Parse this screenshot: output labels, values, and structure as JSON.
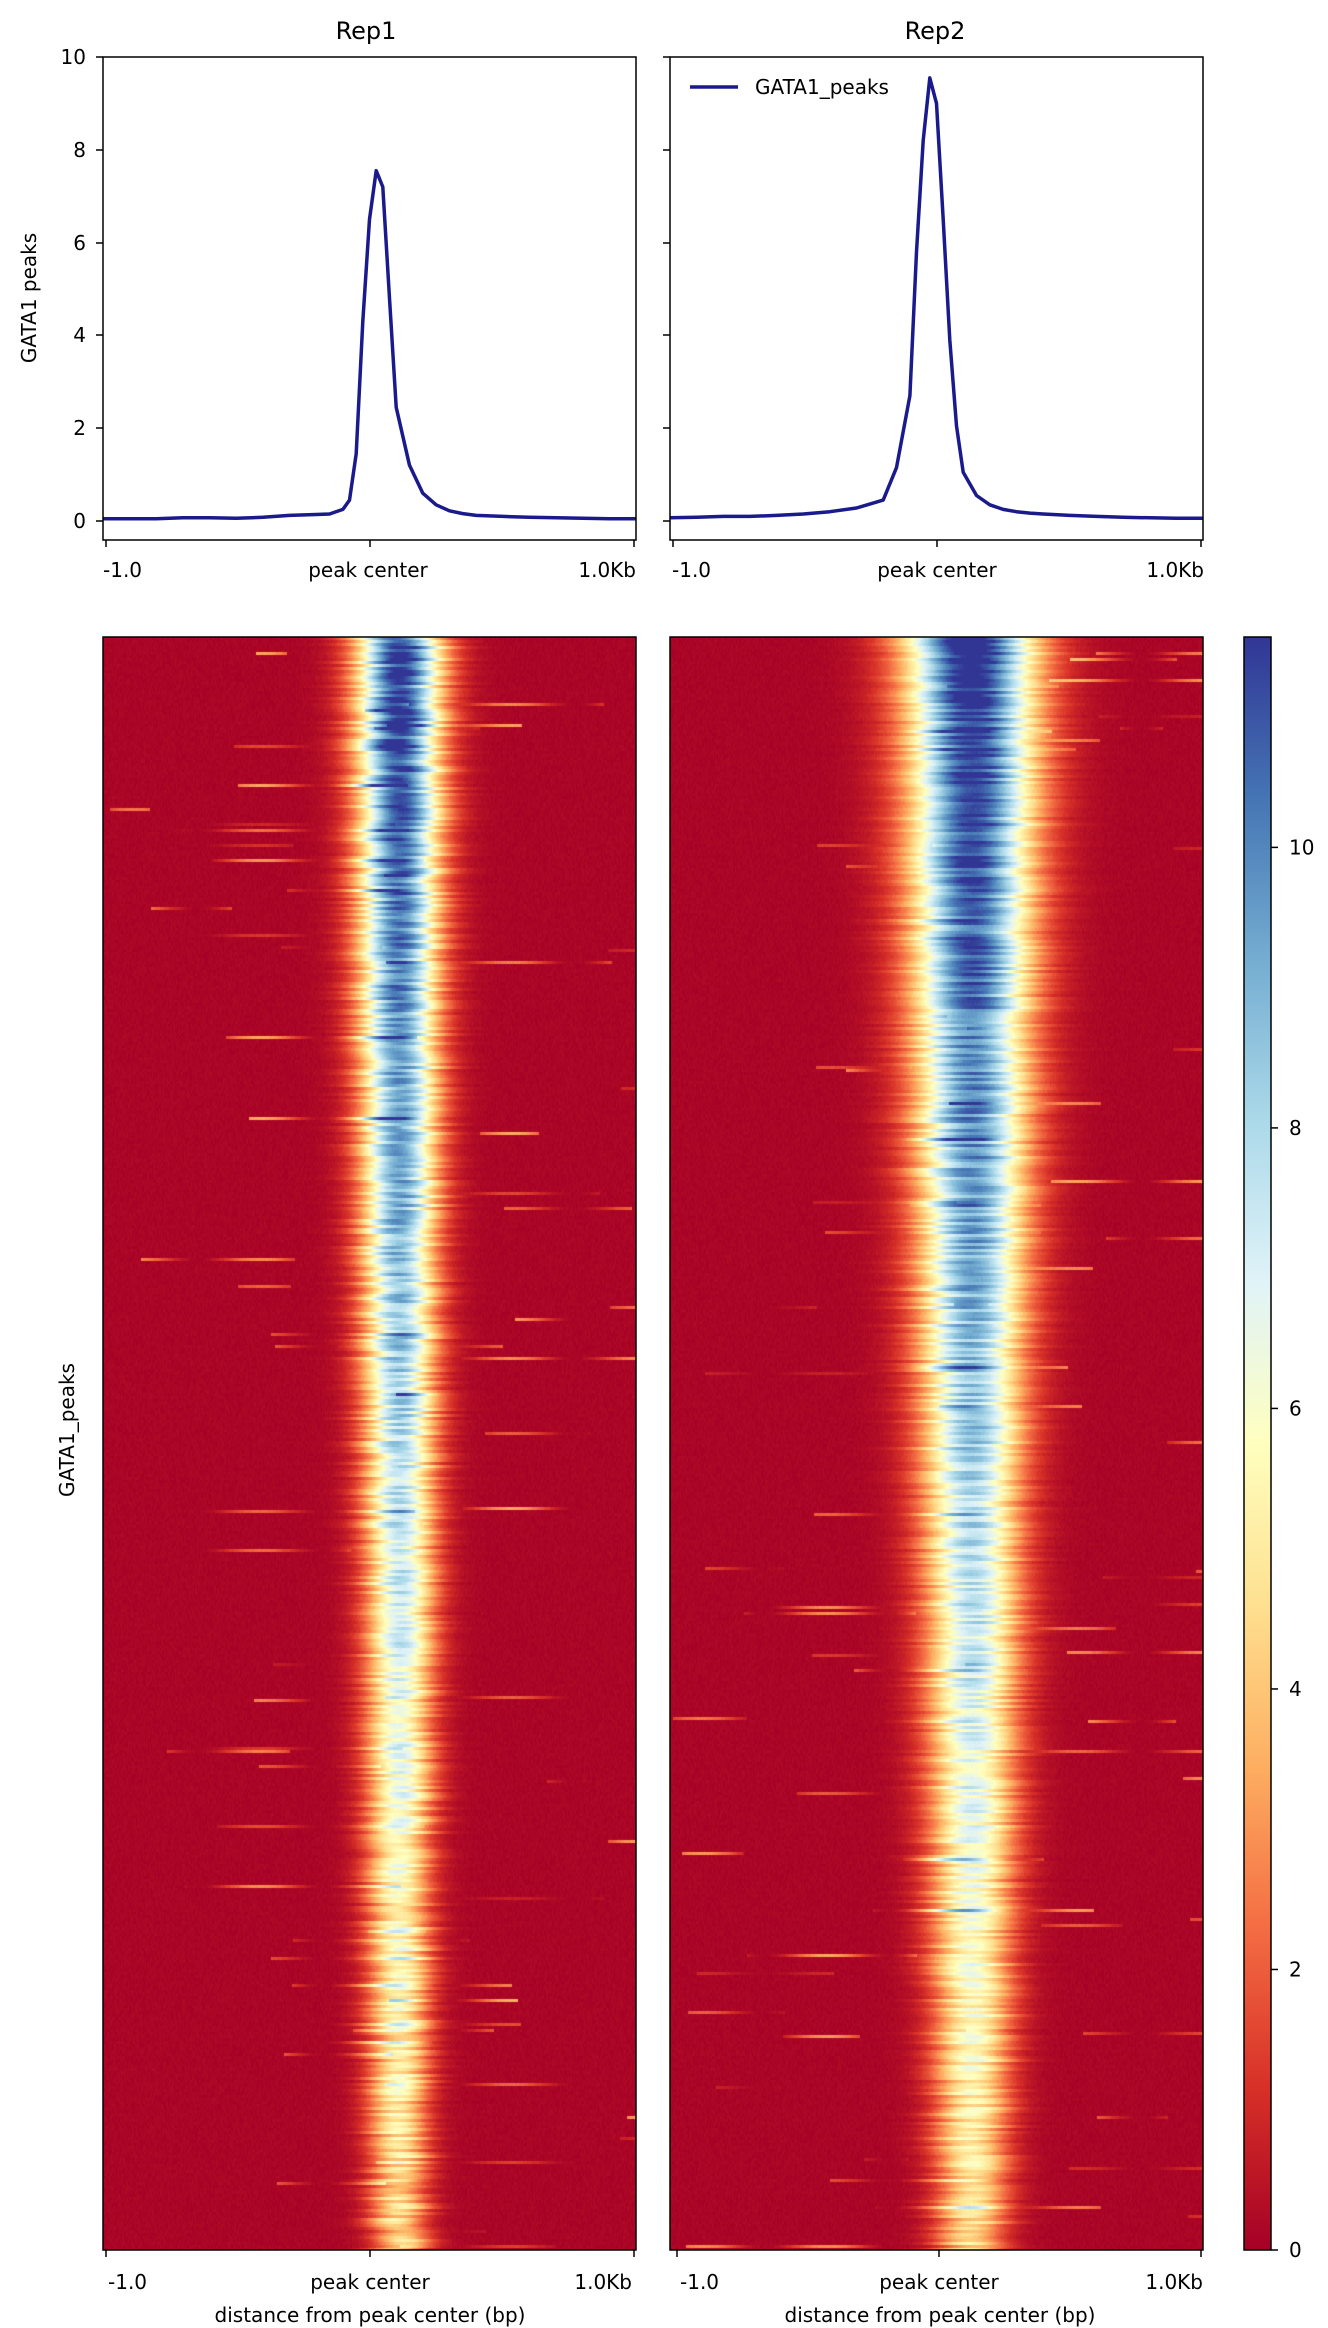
{
  "colors": {
    "profile_line": "#1a1a8c",
    "colormap": [
      "#a50026",
      "#d73027",
      "#f46d43",
      "#fdae61",
      "#fee090",
      "#ffffbf",
      "#e0f3f8",
      "#abd9e9",
      "#74add1",
      "#4575b4",
      "#313695"
    ]
  },
  "chart_data": [
    {
      "type": "line",
      "title": "Rep1",
      "ylabel": "GATA1 peaks",
      "x_ticks": [
        "-1.0",
        "peak center",
        "1.0Kb"
      ],
      "y_ticks": [
        "0",
        "2",
        "4",
        "6",
        "8",
        "10"
      ],
      "xlim": [
        -1000,
        1000
      ],
      "ylim": [
        -0.4,
        10
      ],
      "series": [
        {
          "x": [
            -1000,
            -900,
            -800,
            -700,
            -600,
            -500,
            -400,
            -300,
            -200,
            -150,
            -100,
            -75,
            -50,
            -25,
            0,
            25,
            50,
            75,
            100,
            150,
            200,
            250,
            300,
            350,
            400,
            500,
            600,
            700,
            800,
            900,
            1000
          ],
          "values": [
            0.05,
            0.05,
            0.05,
            0.07,
            0.07,
            0.06,
            0.08,
            0.12,
            0.14,
            0.15,
            0.25,
            0.45,
            1.45,
            4.3,
            6.5,
            7.55,
            7.2,
            4.8,
            2.45,
            1.2,
            0.6,
            0.35,
            0.22,
            0.16,
            0.12,
            0.1,
            0.08,
            0.07,
            0.06,
            0.05,
            0.05
          ]
        }
      ]
    },
    {
      "type": "line",
      "title": "Rep2",
      "x_ticks": [
        "-1.0",
        "peak center",
        "1.0Kb"
      ],
      "xlim": [
        -1000,
        1000
      ],
      "ylim": [
        -0.4,
        10
      ],
      "legend": {
        "position": "top-left",
        "label": "GATA1_peaks"
      },
      "series": [
        {
          "name": "GATA1_peaks",
          "x": [
            -1000,
            -900,
            -800,
            -700,
            -600,
            -500,
            -400,
            -300,
            -200,
            -150,
            -100,
            -75,
            -50,
            -25,
            0,
            25,
            50,
            75,
            100,
            150,
            200,
            250,
            300,
            350,
            400,
            500,
            600,
            700,
            800,
            900,
            1000
          ],
          "values": [
            0.07,
            0.08,
            0.1,
            0.1,
            0.12,
            0.15,
            0.2,
            0.28,
            0.45,
            1.15,
            2.7,
            5.8,
            8.2,
            9.55,
            9.0,
            6.5,
            3.9,
            2.05,
            1.05,
            0.55,
            0.35,
            0.25,
            0.2,
            0.17,
            0.15,
            0.12,
            0.1,
            0.08,
            0.07,
            0.06,
            0.06
          ]
        }
      ]
    },
    {
      "type": "heatmap",
      "panel": "Rep1",
      "ylabel": "GATA1_peaks",
      "xlabel": "distance from peak center (bp)",
      "x_ticks": [
        "-1.0",
        "peak center",
        "1.0Kb"
      ],
      "xlim": [
        -1000,
        1000
      ],
      "signal_center_bp": 110,
      "signal_top": 11.5,
      "signal_bottom": 4.2,
      "width_top_bp": 170,
      "width_bottom_bp": 115
    },
    {
      "type": "heatmap",
      "panel": "Rep2",
      "xlabel": "distance from peak center (bp)",
      "x_ticks": [
        "-1.0",
        "peak center",
        "1.0Kb"
      ],
      "xlim": [
        -1000,
        1000
      ],
      "signal_center_bp": 130,
      "signal_top": 12,
      "signal_bottom": 4.5,
      "width_top_bp": 260,
      "width_bottom_bp": 140
    },
    {
      "type": "colorbar",
      "range": [
        0,
        11.5
      ],
      "ticks": [
        "0",
        "2",
        "4",
        "6",
        "8",
        "10"
      ],
      "tick_values": [
        0,
        2,
        4,
        6,
        8,
        10
      ]
    }
  ]
}
